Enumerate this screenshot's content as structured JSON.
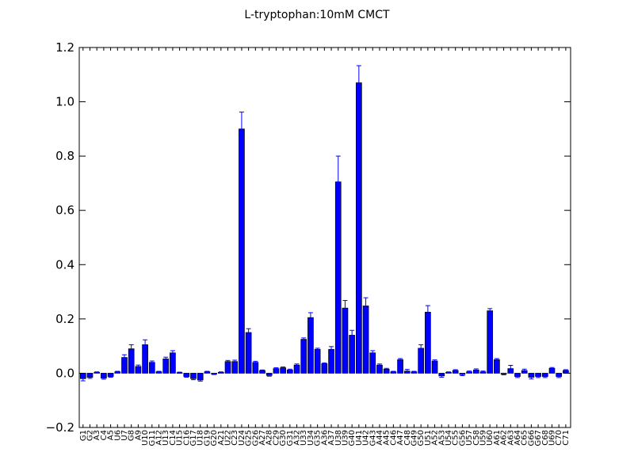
{
  "chart_data": {
    "type": "bar",
    "title": "L-tryptophan:10mM  CMCT",
    "xlabel": "",
    "ylabel": "",
    "ylim": [
      -0.2,
      1.2
    ],
    "yticks": [
      -0.2,
      0.0,
      0.2,
      0.4,
      0.6,
      0.8,
      1.0,
      1.2
    ],
    "ytick_labels": [
      "−0.2",
      "0.0",
      "0.2",
      "0.4",
      "0.6",
      "0.8",
      "1.0",
      "1.2"
    ],
    "grid": false,
    "legend": "none",
    "bar_color": "#0000ff",
    "error_color": "#0000ff",
    "categories": [
      "G1",
      "G2",
      "A3",
      "C4",
      "A5",
      "U6",
      "U7",
      "G8",
      "A9",
      "U10",
      "G11",
      "A12",
      "U13",
      "C14",
      "U15",
      "C16",
      "G17",
      "U18",
      "G19",
      "G20",
      "A21",
      "U22",
      "C23",
      "U24",
      "G25",
      "G26",
      "A27",
      "A28",
      "C29",
      "G30",
      "G31",
      "A32",
      "U33",
      "U34",
      "G35",
      "A36",
      "A37",
      "U38",
      "U39",
      "G40",
      "U41",
      "U42",
      "G43",
      "A44",
      "A45",
      "C46",
      "A47",
      "C48",
      "G49",
      "G50",
      "U51",
      "A52",
      "A53",
      "U54",
      "C55",
      "G56",
      "U57",
      "C58",
      "U59",
      "U60",
      "A61",
      "A62",
      "A63",
      "A64",
      "C65",
      "G66",
      "G67",
      "C68",
      "U69",
      "C70",
      "C71"
    ],
    "values": [
      -0.02,
      -0.015,
      0.003,
      -0.018,
      -0.012,
      0.005,
      0.058,
      0.09,
      0.025,
      0.105,
      0.04,
      0.005,
      0.053,
      0.075,
      0.002,
      -0.012,
      -0.02,
      -0.025,
      0.005,
      -0.003,
      0.003,
      0.043,
      0.043,
      0.9,
      0.15,
      0.04,
      0.01,
      -0.008,
      0.017,
      0.02,
      0.012,
      0.03,
      0.125,
      0.205,
      0.088,
      0.035,
      0.088,
      0.705,
      0.24,
      0.14,
      1.07,
      0.248,
      0.075,
      0.03,
      0.015,
      0.005,
      0.05,
      0.008,
      0.005,
      0.092,
      0.225,
      0.045,
      -0.01,
      0.003,
      0.01,
      -0.005,
      0.005,
      0.012,
      0.005,
      0.23,
      0.05,
      -0.003,
      0.017,
      -0.012,
      0.01,
      -0.015,
      -0.012,
      -0.012,
      0.018,
      -0.012,
      0.01
    ],
    "errors": [
      0.008,
      0.004,
      0.002,
      0.004,
      0.003,
      0.002,
      0.01,
      0.015,
      0.005,
      0.018,
      0.005,
      0.002,
      0.006,
      0.008,
      0.002,
      0.003,
      0.004,
      0.004,
      0.002,
      0.002,
      0.002,
      0.004,
      0.005,
      0.062,
      0.014,
      0.004,
      0.002,
      0.003,
      0.003,
      0.003,
      0.003,
      0.004,
      0.005,
      0.018,
      0.004,
      0.003,
      0.01,
      0.095,
      0.028,
      0.018,
      0.063,
      0.03,
      0.008,
      0.004,
      0.003,
      0.002,
      0.004,
      0.006,
      0.002,
      0.013,
      0.024,
      0.004,
      0.005,
      0.002,
      0.003,
      0.004,
      0.003,
      0.004,
      0.003,
      0.008,
      0.004,
      0.003,
      0.012,
      0.004,
      0.005,
      0.006,
      0.004,
      0.004,
      0.003,
      0.004,
      0.003
    ]
  }
}
